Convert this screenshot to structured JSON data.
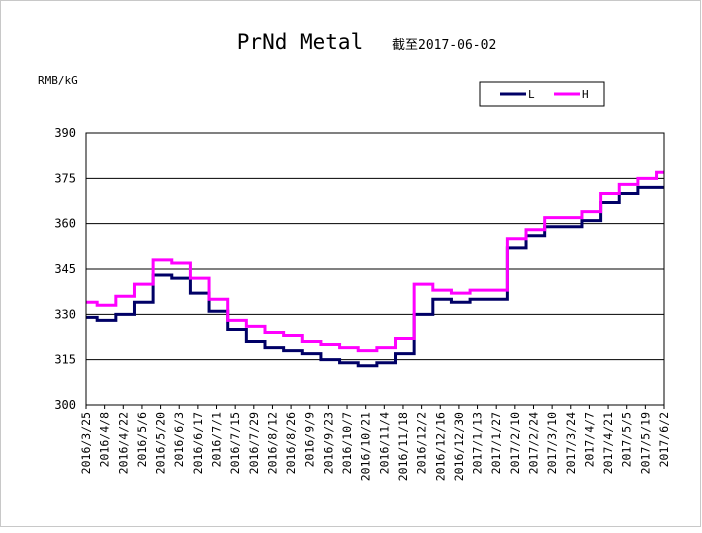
{
  "chart_data": {
    "type": "line",
    "title": "PrNd Metal",
    "subtitle": "截至2017-06-02",
    "ylabel": "RMB/kG",
    "ylim": [
      300,
      390
    ],
    "yticks": [
      "300",
      "315",
      "330",
      "345",
      "360",
      "375",
      "390"
    ],
    "grid": true,
    "legend_placement": "top-right",
    "categories": [
      "2016/3/25",
      "2016/4/8",
      "2016/4/22",
      "2016/5/6",
      "2016/5/20",
      "2016/6/3",
      "2016/6/17",
      "2016/7/1",
      "2016/7/15",
      "2016/7/29",
      "2016/8/12",
      "2016/8/26",
      "2016/9/9",
      "2016/9/23",
      "2016/10/7",
      "2016/10/21",
      "2016/11/4",
      "2016/11/18",
      "2016/12/2",
      "2016/12/16",
      "2016/12/30",
      "2017/1/13",
      "2017/1/27",
      "2017/2/10",
      "2017/2/24",
      "2017/3/10",
      "2017/3/24",
      "2017/4/7",
      "2017/4/21",
      "2017/5/5",
      "2017/5/19",
      "2017/6/2"
    ],
    "series": [
      {
        "name": "L",
        "color": "#000066",
        "values": [
          329,
          328,
          330,
          334,
          343,
          342,
          337,
          331,
          325,
          321,
          319,
          318,
          317,
          315,
          314,
          313,
          314,
          317,
          330,
          335,
          334,
          335,
          335,
          352,
          356,
          359,
          359,
          361,
          367,
          370,
          372,
          372
        ]
      },
      {
        "name": "H",
        "color": "#ff00ff",
        "values": [
          334,
          333,
          336,
          340,
          348,
          347,
          342,
          335,
          328,
          326,
          324,
          323,
          321,
          320,
          319,
          318,
          319,
          322,
          340,
          338,
          337,
          338,
          338,
          355,
          358,
          362,
          362,
          364,
          370,
          373,
          375,
          377
        ]
      }
    ]
  }
}
